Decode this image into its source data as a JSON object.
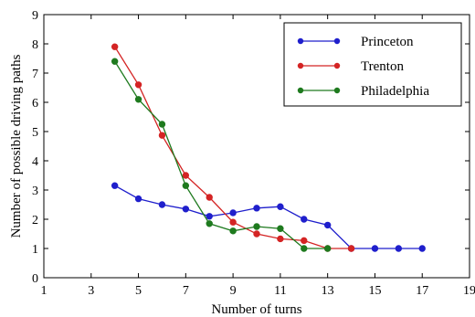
{
  "chart_data": {
    "type": "line",
    "title": "",
    "xlabel": "Number of turns",
    "ylabel": "Number of possible driving paths",
    "xlim": [
      1,
      19
    ],
    "ylim": [
      0,
      9
    ],
    "xticks": [
      1,
      3,
      5,
      7,
      9,
      11,
      13,
      15,
      17,
      19
    ],
    "yticks": [
      0,
      1,
      2,
      3,
      4,
      5,
      6,
      7,
      8,
      9
    ],
    "grid": false,
    "legend_position": "top-right",
    "series": [
      {
        "name": "Princeton",
        "color": "#1f1fcc",
        "x": [
          4,
          5,
          6,
          7,
          8,
          9,
          10,
          11,
          12,
          13,
          14,
          15,
          16,
          17
        ],
        "y": [
          3.15,
          2.7,
          2.5,
          2.35,
          2.1,
          2.22,
          2.38,
          2.43,
          2.0,
          1.8,
          1.0,
          1.0,
          1.0,
          1.0
        ]
      },
      {
        "name": "Trenton",
        "color": "#d42424",
        "x": [
          4,
          5,
          6,
          7,
          8,
          9,
          10,
          11,
          12,
          13,
          14
        ],
        "y": [
          7.9,
          6.6,
          4.87,
          3.5,
          2.75,
          1.9,
          1.5,
          1.33,
          1.27,
          1.0,
          1.0
        ]
      },
      {
        "name": "Philadelphia",
        "color": "#1e7a1e",
        "x": [
          4,
          5,
          6,
          7,
          8,
          9,
          10,
          11,
          12,
          13
        ],
        "y": [
          7.4,
          6.1,
          5.25,
          3.15,
          1.85,
          1.6,
          1.75,
          1.68,
          1.0,
          1.0
        ]
      }
    ]
  }
}
